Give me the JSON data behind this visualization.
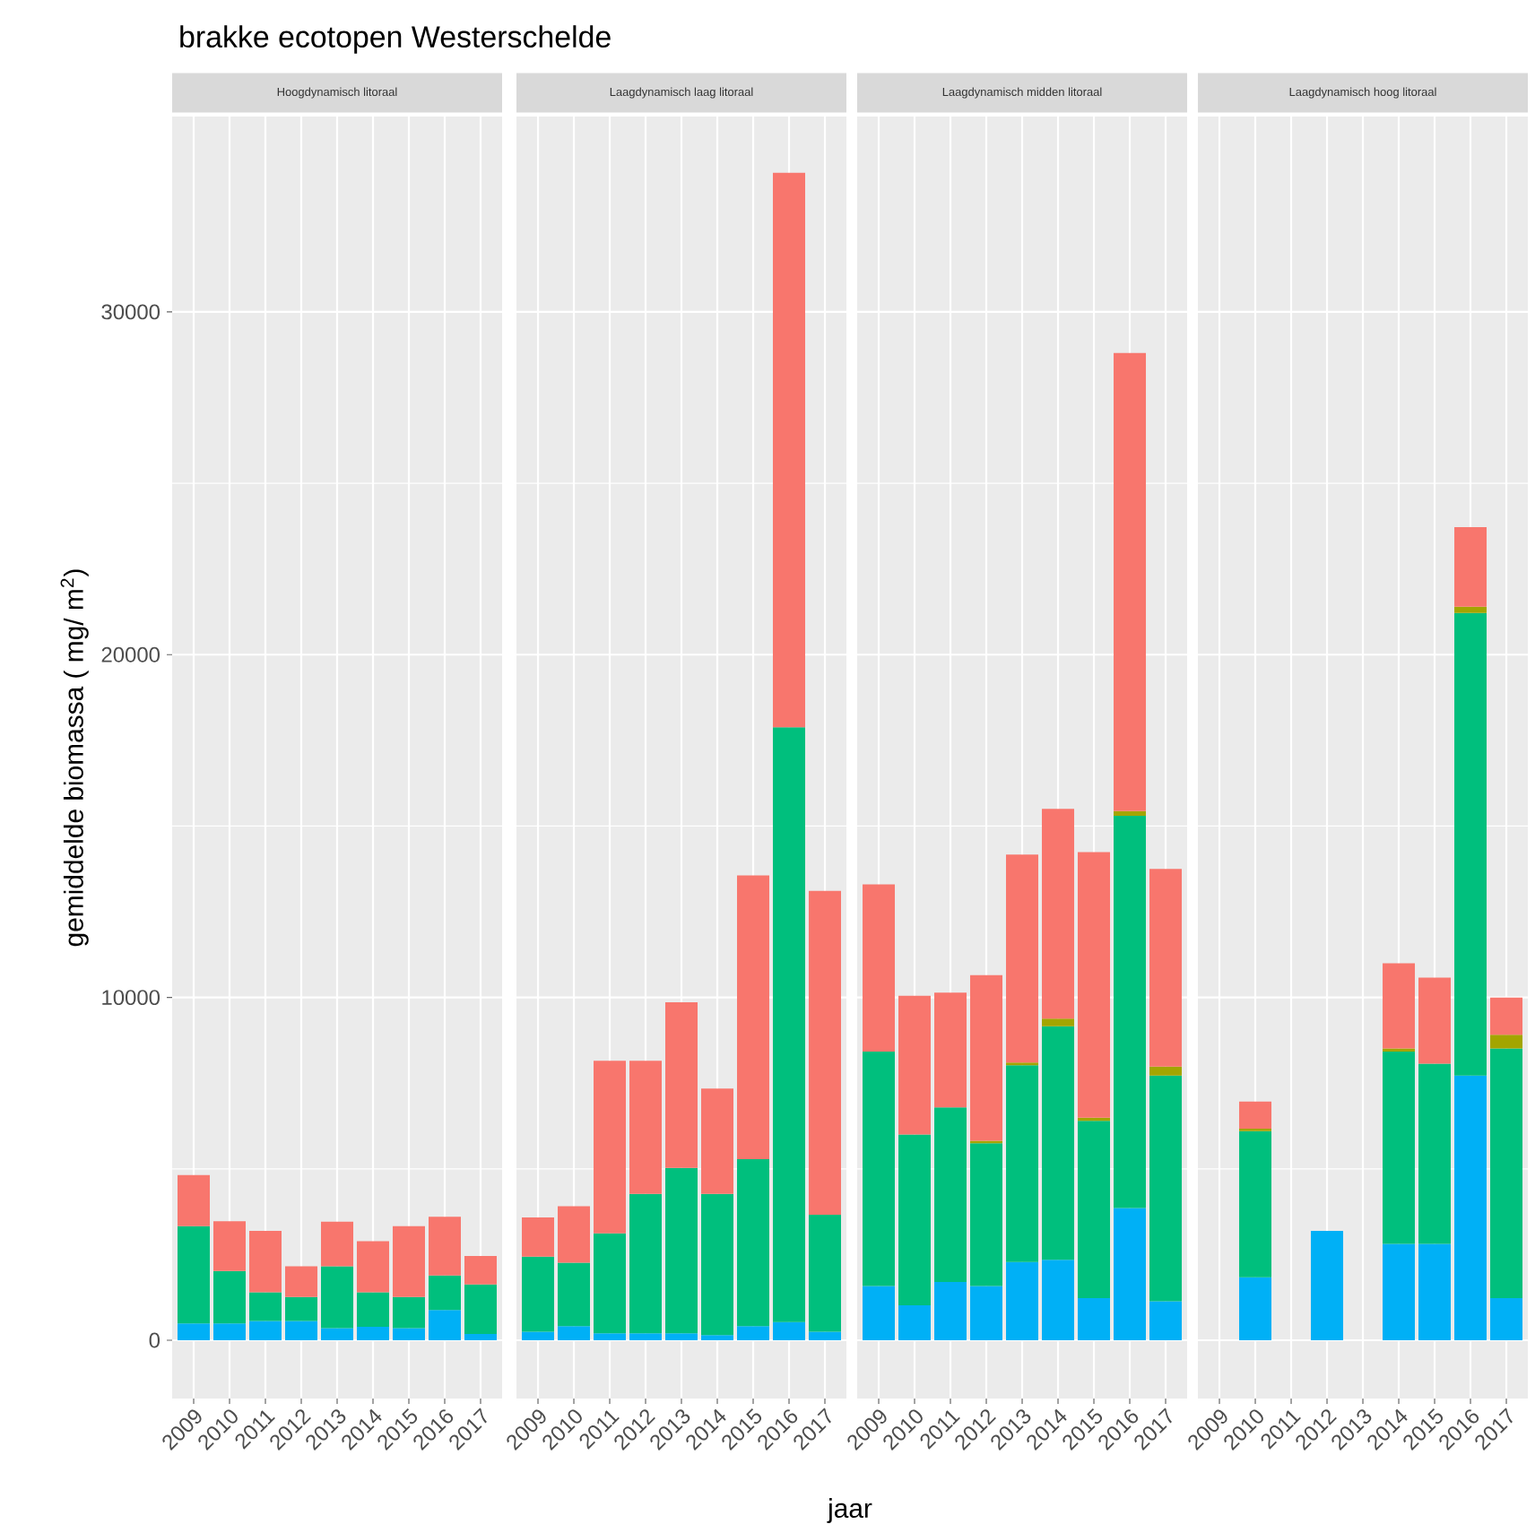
{
  "chart_data": [
    {
      "type": "bar",
      "title": "brakke ecotopen Westerschelde",
      "subtitle": "Hoogdynamisch litoraal",
      "ylabel": "gemiddelde biomassa ( mg/ m$^{2}$)",
      "categories": [
        "2009",
        "2010",
        "2011",
        "2012",
        "2013",
        "2014",
        "2015",
        "2016",
        "2017"
      ],
      "stacked": true,
      "ylim": [
        -1700,
        35700
      ],
      "yticks": [
        0,
        10000,
        20000,
        30000
      ],
      "grid": true,
      "series": [
        {
          "color": "#00b0f6",
          "values": [
            490,
            490,
            560,
            560,
            350,
            390,
            350,
            880,
            180
          ]
        },
        {
          "color": "#00bf7d",
          "values": [
            2840,
            1530,
            840,
            700,
            1810,
            1010,
            910,
            1010,
            1450
          ]
        },
        {
          "color": "#a3a500",
          "values": [
            null,
            null,
            null,
            null,
            null,
            null,
            null,
            null,
            null
          ]
        },
        {
          "color": "#f8766d",
          "values": [
            1490,
            1450,
            1790,
            900,
            1300,
            1490,
            2070,
            1710,
            830
          ]
        }
      ]
    },
    {
      "type": "bar",
      "subtitle": "Laagdynamisch laag litoraal",
      "xlabel": "jaar",
      "categories": [
        "2009",
        "2010",
        "2011",
        "2012",
        "2013",
        "2014",
        "2015",
        "2016",
        "2017"
      ],
      "stacked": true,
      "ylim": [
        -1700,
        35700
      ],
      "yticks": [
        0,
        10000,
        20000,
        30000
      ],
      "grid": true,
      "tick_labels": "x",
      "series": [
        {
          "color": "#00b0f6",
          "values": [
            250,
            410,
            200,
            200,
            200,
            150,
            410,
            530,
            250
          ]
        },
        {
          "color": "#00bf7d",
          "values": [
            2190,
            1850,
            2920,
            4070,
            4830,
            4120,
            4870,
            17350,
            3410
          ]
        },
        {
          "color": "#a3a500",
          "values": [
            null,
            null,
            null,
            null,
            null,
            null,
            null,
            null,
            null
          ]
        },
        {
          "color": "#f8766d",
          "values": [
            1140,
            1650,
            5030,
            3880,
            4830,
            3070,
            8280,
            16180,
            9450
          ]
        }
      ]
    },
    {
      "type": "bar",
      "subtitle": "Laagdynamisch midden litoraal",
      "categories": [
        "2009",
        "2010",
        "2011",
        "2012",
        "2013",
        "2014",
        "2015",
        "2016",
        "2017"
      ],
      "stacked": true,
      "ylim": [
        -1700,
        35700
      ],
      "yticks": [
        0,
        10000,
        20000,
        30000
      ],
      "grid": true,
      "tick_labels": "x",
      "series": [
        {
          "color": "#00b0f6",
          "values": [
            1580,
            1020,
            1700,
            1580,
            2280,
            2350,
            1230,
            3860,
            1140
          ]
        },
        {
          "color": "#00bf7d",
          "values": [
            6840,
            4980,
            5090,
            4170,
            5740,
            6810,
            5170,
            11440,
            6580
          ]
        },
        {
          "color": "#a3a500",
          "values": [
            null,
            null,
            null,
            70,
            80,
            220,
            90,
            140,
            260
          ]
        },
        {
          "color": "#f8766d",
          "values": [
            4880,
            4050,
            3350,
            4830,
            6070,
            6120,
            7750,
            13360,
            5770
          ]
        }
      ]
    },
    {
      "type": "bar",
      "subtitle": "Laagdynamisch hoog litoraal",
      "categories": [
        "2009",
        "2010",
        "2011",
        "2012",
        "2013",
        "2014",
        "2015",
        "2016",
        "2017"
      ],
      "stacked": true,
      "ylim": [
        -1700,
        35700
      ],
      "yticks": [
        0,
        10000,
        20000,
        30000
      ],
      "grid": true,
      "tick_labels": "x",
      "series": [
        {
          "color": "#00b0f6",
          "values": [
            null,
            1840,
            null,
            3190,
            null,
            2810,
            2810,
            7720,
            1230
          ]
        },
        {
          "color": "#00bf7d",
          "values": [
            null,
            4260,
            null,
            null,
            null,
            5610,
            5260,
            13500,
            7280
          ]
        },
        {
          "color": "#a3a500",
          "values": [
            null,
            70,
            null,
            null,
            null,
            90,
            null,
            180,
            400
          ]
        },
        {
          "color": "#f8766d",
          "values": [
            null,
            790,
            null,
            null,
            null,
            2490,
            2510,
            2320,
            1090
          ]
        }
      ]
    }
  ]
}
